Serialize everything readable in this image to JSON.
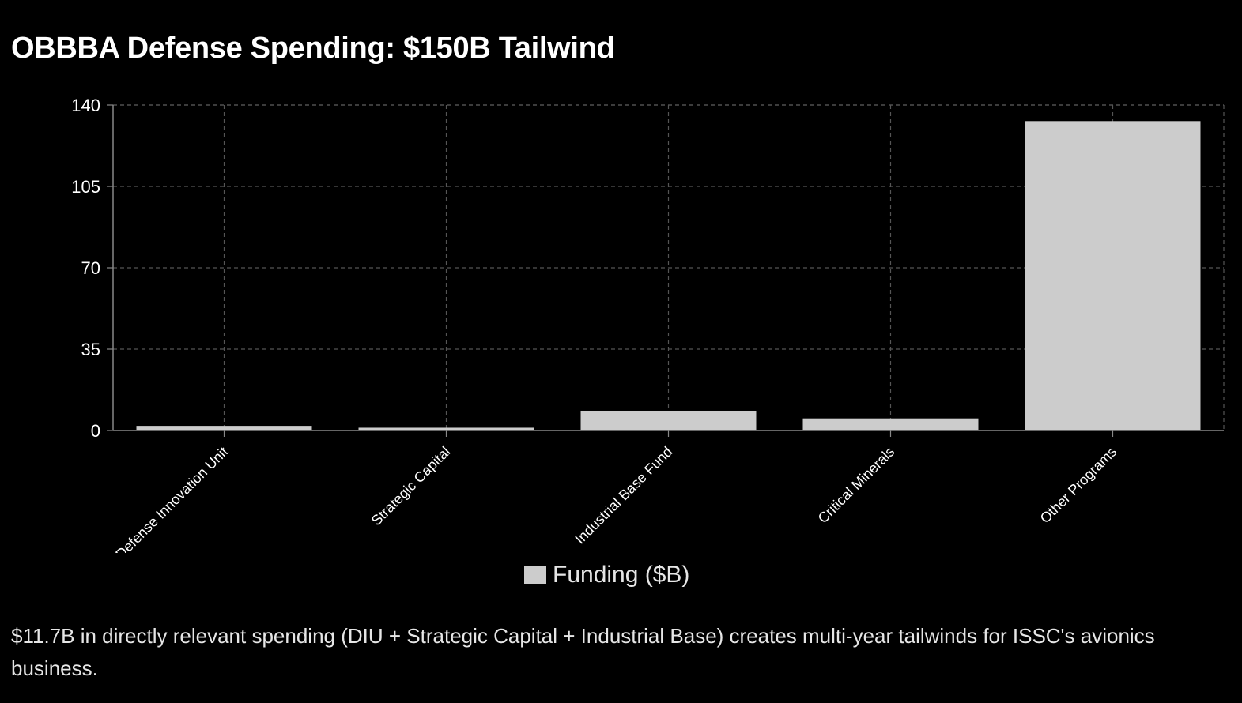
{
  "title": "OBBBA Defense Spending: $150B Tailwind",
  "caption": "$11.7B in directly relevant spending (DIU + Strategic Capital + Industrial Base) creates multi-year tailwinds for ISSC's avionics business.",
  "colors": {
    "background": "#000000",
    "bar": "#cccccc",
    "grid": "#555555",
    "axis": "#888888",
    "text": "#ffffff"
  },
  "chart_data": {
    "type": "bar",
    "title": "OBBBA Defense Spending: $150B Tailwind",
    "categories": [
      "Defense Innovation Unit",
      "Strategic Capital",
      "Industrial Base Fund",
      "Critical Minerals",
      "Other Programs"
    ],
    "series": [
      {
        "name": "Funding ($B)",
        "values": [
          2,
          1.2,
          8.5,
          5.2,
          133.1
        ]
      }
    ],
    "yticks": [
      0,
      35,
      70,
      105,
      140
    ],
    "ylim": [
      0,
      140
    ],
    "xlabel": "",
    "ylabel": "",
    "grid": true,
    "legend": "bottom-center"
  }
}
